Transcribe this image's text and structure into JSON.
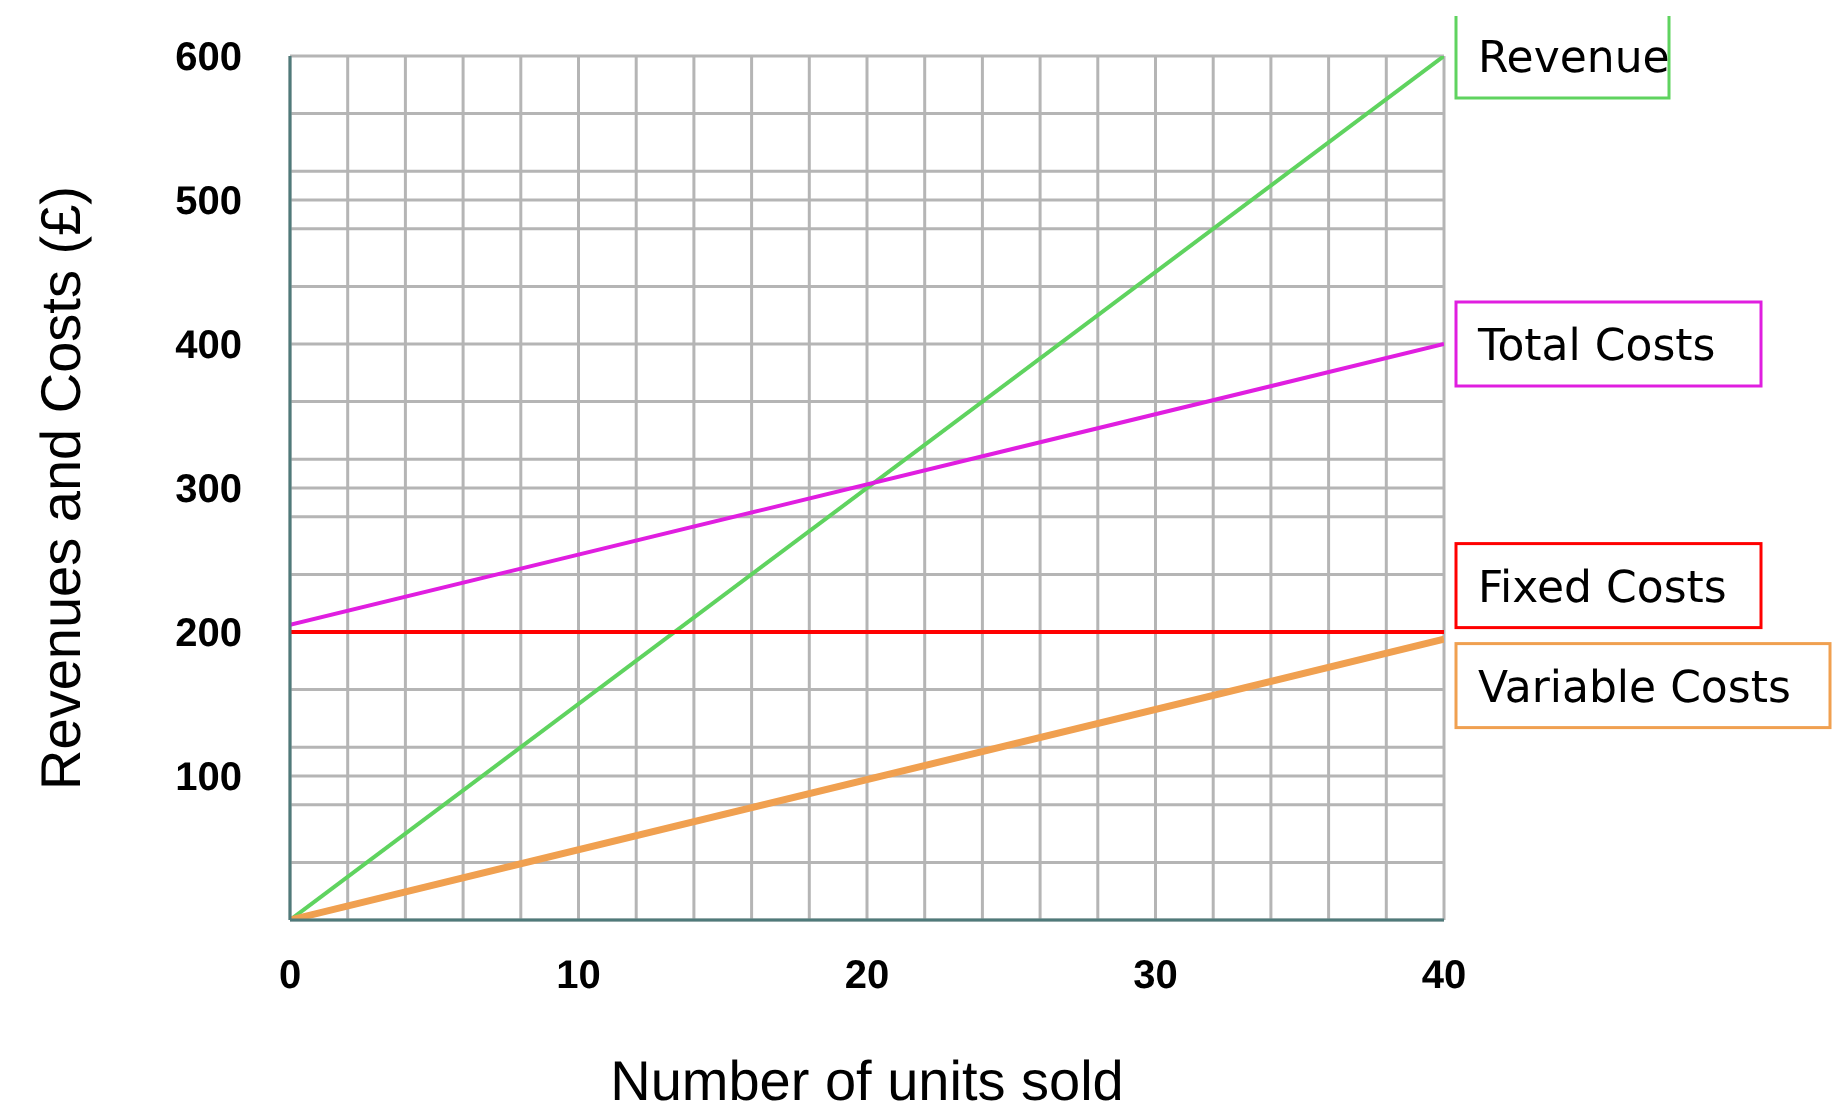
{
  "chart_data": {
    "type": "line",
    "xlabel": "Number of units sold",
    "ylabel": "Revenues and Costs (£)",
    "x": [
      0,
      40
    ],
    "series": [
      {
        "name": "Revenue",
        "color": "#5fd35f",
        "values": [
          0,
          600
        ]
      },
      {
        "name": "Total Costs",
        "color": "#e01ee0",
        "values": [
          205,
          400
        ]
      },
      {
        "name": "Fixed Costs",
        "color": "#ff0000",
        "values": [
          200,
          200
        ]
      },
      {
        "name": "Variable Costs",
        "color": "#f0a050",
        "values": [
          0,
          195
        ]
      }
    ],
    "xlim": [
      0,
      40
    ],
    "xticks": [
      0,
      {
        "value": 2,
        "label": null
      },
      {
        "value": 4,
        "label": null
      },
      {
        "value": 6,
        "label": null
      },
      {
        "value": 8,
        "label": null
      },
      10,
      {
        "value": 12,
        "label": null
      },
      {
        "value": 14,
        "label": null
      },
      {
        "value": 16,
        "label": null
      },
      {
        "value": 18,
        "label": null
      },
      20,
      {
        "value": 22,
        "label": null
      },
      {
        "value": 24,
        "label": null
      },
      {
        "value": 26,
        "label": null
      },
      {
        "value": 28,
        "label": null
      },
      30,
      {
        "value": 32,
        "label": null
      },
      {
        "value": 34,
        "label": null
      },
      {
        "value": 36,
        "label": null
      },
      {
        "value": 38,
        "label": null
      },
      40
    ],
    "ylim": [
      0,
      600
    ],
    "yticks": [
      {
        "value": 0,
        "label": null
      },
      {
        "value": 40,
        "label": null
      },
      {
        "value": 80,
        "label": null
      },
      100,
      {
        "value": 120,
        "label": null
      },
      {
        "value": 160,
        "label": null
      },
      200,
      {
        "value": 240,
        "label": null
      },
      {
        "value": 280,
        "label": null
      },
      300,
      {
        "value": 320,
        "label": null
      },
      {
        "value": 360,
        "label": null
      },
      400,
      {
        "value": 440,
        "label": null
      },
      {
        "value": 480,
        "label": null
      },
      500,
      {
        "value": 520,
        "label": null
      },
      {
        "value": 560,
        "label": null
      },
      600
    ],
    "grid": true,
    "marker": "none",
    "line_style": "solid"
  }
}
